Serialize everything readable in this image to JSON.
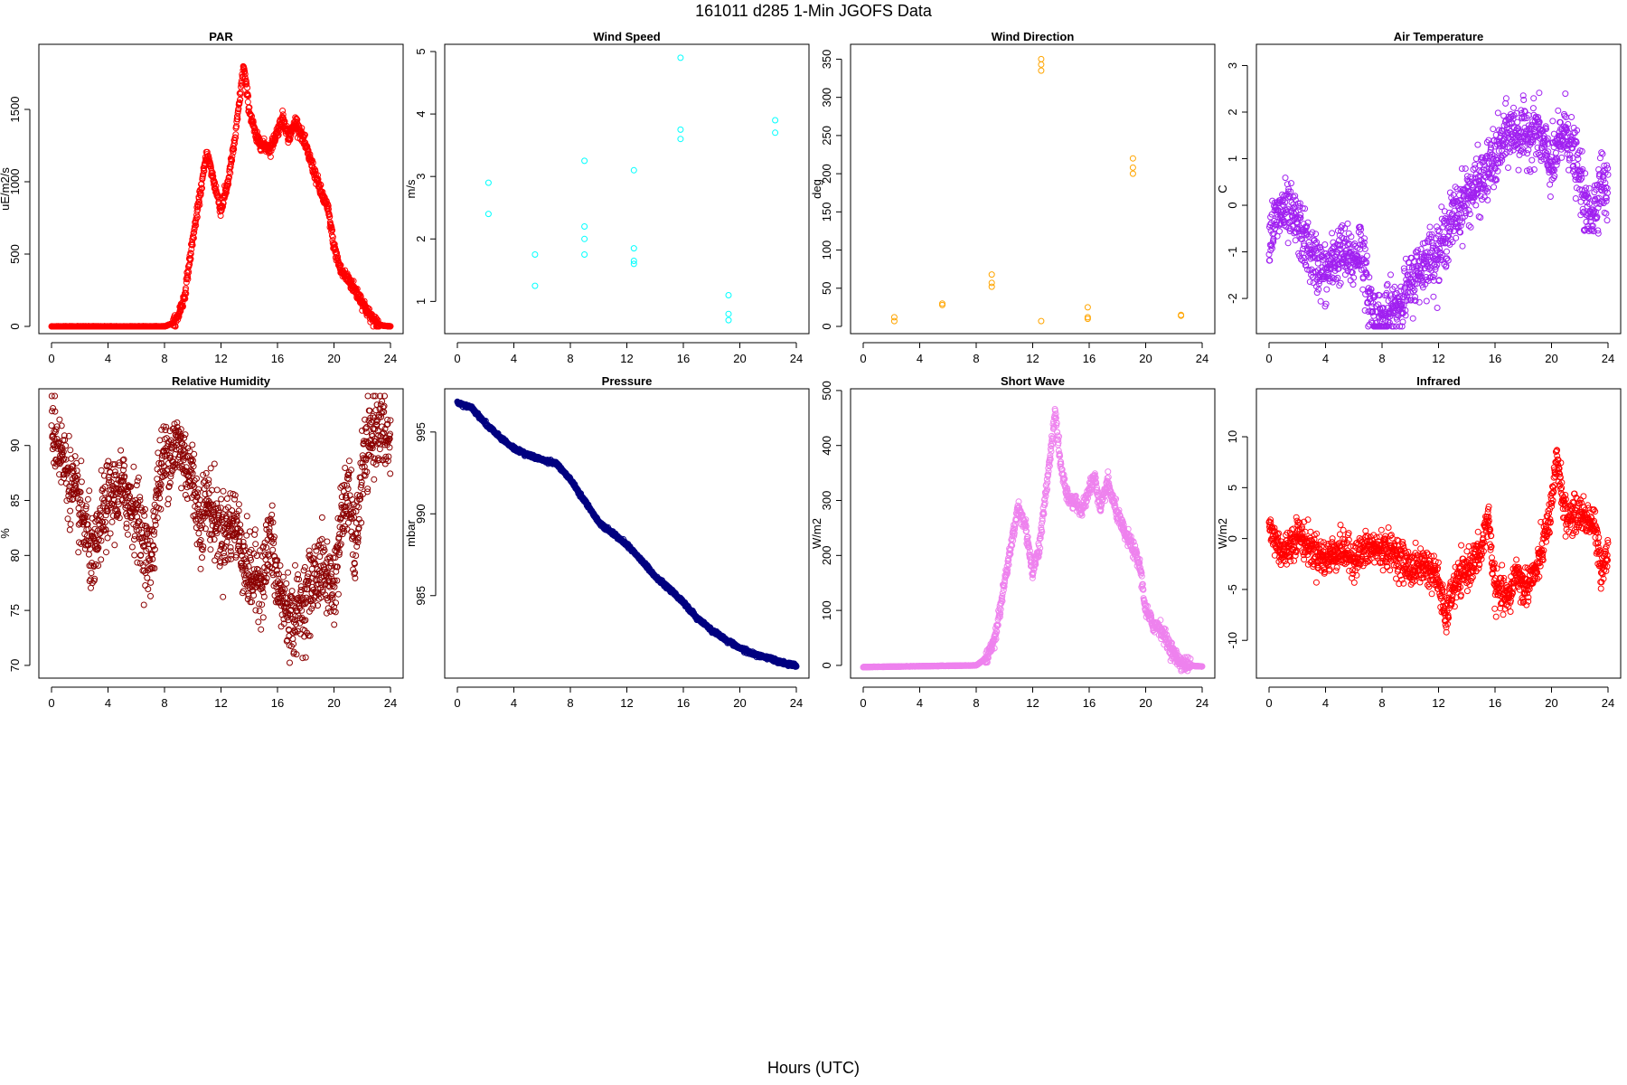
{
  "title": "161011   d285   1-Min  JGOFS Data",
  "xlabel": "Hours (UTC)",
  "chart_data": [
    {
      "id": "par",
      "type": "scatter",
      "title": "PAR",
      "ylabel": "uE/m2/s",
      "color": "#ff0000",
      "xlim": [
        0,
        24
      ],
      "ylim": [
        0,
        1900
      ],
      "xticks": [
        0,
        4,
        8,
        12,
        16,
        20,
        24
      ],
      "xtick_labels": [
        "0",
        "4",
        "8",
        "12",
        "16",
        "20",
        "24"
      ],
      "yticks": [
        0,
        500,
        1000,
        1500
      ],
      "ytick_labels": [
        "0",
        "500",
        "1000",
        "1500"
      ],
      "keypoints": [
        [
          0,
          0
        ],
        [
          8,
          0
        ],
        [
          8.8,
          30
        ],
        [
          9.4,
          200
        ],
        [
          10,
          600
        ],
        [
          10.5,
          900
        ],
        [
          11,
          1200
        ],
        [
          11.5,
          1000
        ],
        [
          12,
          800
        ],
        [
          12.5,
          1000
        ],
        [
          13,
          1300
        ],
        [
          13.6,
          1800
        ],
        [
          14,
          1500
        ],
        [
          14.5,
          1300
        ],
        [
          15,
          1250
        ],
        [
          15.5,
          1230
        ],
        [
          16,
          1350
        ],
        [
          16.4,
          1450
        ],
        [
          16.8,
          1300
        ],
        [
          17.3,
          1420
        ],
        [
          17.8,
          1300
        ],
        [
          18.5,
          1100
        ],
        [
          19,
          950
        ],
        [
          19.6,
          800
        ],
        [
          20,
          550
        ],
        [
          20.5,
          380
        ],
        [
          21,
          330
        ],
        [
          21.5,
          250
        ],
        [
          22,
          170
        ],
        [
          22.5,
          80
        ],
        [
          23,
          20
        ],
        [
          23.5,
          5
        ],
        [
          24,
          0
        ]
      ],
      "noise": 60,
      "count": 1440
    },
    {
      "id": "wind_speed",
      "type": "scatter",
      "title": "Wind Speed",
      "ylabel": "m/s",
      "color": "#00ffff",
      "xlim": [
        0,
        24
      ],
      "ylim": [
        0.6,
        5.0
      ],
      "xticks": [
        0,
        4,
        8,
        12,
        16,
        20,
        24
      ],
      "xtick_labels": [
        "0",
        "4",
        "8",
        "12",
        "16",
        "20",
        "24"
      ],
      "yticks": [
        1,
        2,
        3,
        4,
        5
      ],
      "ytick_labels": [
        "1",
        "2",
        "3",
        "4",
        "5"
      ],
      "points": [
        [
          2.2,
          2.9
        ],
        [
          2.2,
          2.4
        ],
        [
          5.5,
          1.75
        ],
        [
          5.5,
          1.25
        ],
        [
          9,
          3.25
        ],
        [
          9,
          2.2
        ],
        [
          9,
          2.0
        ],
        [
          9,
          1.75
        ],
        [
          12.5,
          3.1
        ],
        [
          12.5,
          1.85
        ],
        [
          12.5,
          1.65
        ],
        [
          12.5,
          1.6
        ],
        [
          15.8,
          4.9
        ],
        [
          15.8,
          3.75
        ],
        [
          15.8,
          3.6
        ],
        [
          19.2,
          1.1
        ],
        [
          19.2,
          0.8
        ],
        [
          19.2,
          0.7
        ],
        [
          22.5,
          3.9
        ],
        [
          22.5,
          3.7
        ]
      ]
    },
    {
      "id": "wind_dir",
      "type": "scatter",
      "title": "Wind Direction",
      "ylabel": "deg",
      "color": "#ffa500",
      "xlim": [
        0,
        24
      ],
      "ylim": [
        0,
        360
      ],
      "xticks": [
        0,
        4,
        8,
        12,
        16,
        20,
        24
      ],
      "xtick_labels": [
        "0",
        "4",
        "8",
        "12",
        "16",
        "20",
        "24"
      ],
      "yticks": [
        0,
        50,
        100,
        150,
        200,
        250,
        300,
        350
      ],
      "ytick_labels": [
        "0",
        "50",
        "100",
        "150",
        "200",
        "250",
        "300",
        "350"
      ],
      "points": [
        [
          2.2,
          12
        ],
        [
          2.2,
          7
        ],
        [
          5.6,
          30
        ],
        [
          5.6,
          28
        ],
        [
          9.1,
          68
        ],
        [
          9.1,
          57
        ],
        [
          9.1,
          52
        ],
        [
          12.6,
          350
        ],
        [
          12.6,
          343
        ],
        [
          12.6,
          335
        ],
        [
          12.6,
          7
        ],
        [
          15.9,
          25
        ],
        [
          15.9,
          12
        ],
        [
          15.9,
          10
        ],
        [
          19.1,
          220
        ],
        [
          19.1,
          208
        ],
        [
          19.1,
          200
        ],
        [
          22.5,
          15
        ],
        [
          22.5,
          14
        ]
      ]
    },
    {
      "id": "air_temp",
      "type": "scatter",
      "title": "Air Temperature",
      "ylabel": "C",
      "color": "#a020f0",
      "xlim": [
        0,
        24
      ],
      "ylim": [
        -2.6,
        3.3
      ],
      "xticks": [
        0,
        4,
        8,
        12,
        16,
        20,
        24
      ],
      "xtick_labels": [
        "0",
        "4",
        "8",
        "12",
        "16",
        "20",
        "24"
      ],
      "yticks": [
        -2,
        -1,
        0,
        1,
        2,
        3
      ],
      "ytick_labels": [
        "-2",
        "-1",
        "0",
        "1",
        "2",
        "3"
      ],
      "keypoints": [
        [
          0,
          -0.6
        ],
        [
          1,
          -0.1
        ],
        [
          2,
          -0.4
        ],
        [
          3,
          -1.1
        ],
        [
          4,
          -1.5
        ],
        [
          5,
          -1.0
        ],
        [
          6,
          -1.2
        ],
        [
          6.5,
          -0.8
        ],
        [
          7,
          -1.9
        ],
        [
          7.5,
          -2.4
        ],
        [
          8,
          -2.5
        ],
        [
          9,
          -2.2
        ],
        [
          10,
          -1.7
        ],
        [
          11,
          -1.2
        ],
        [
          12,
          -1.0
        ],
        [
          13,
          -0.3
        ],
        [
          14,
          0.2
        ],
        [
          15,
          0.5
        ],
        [
          16,
          1.0
        ],
        [
          17,
          1.6
        ],
        [
          18,
          1.5
        ],
        [
          19,
          1.6
        ],
        [
          20,
          0.8
        ],
        [
          21,
          1.7
        ],
        [
          22,
          0.6
        ],
        [
          22.5,
          -0.2
        ],
        [
          23,
          -0.1
        ],
        [
          23.5,
          0.6
        ],
        [
          24,
          0.2
        ]
      ],
      "noise": 0.9,
      "count": 1440
    },
    {
      "id": "rh",
      "type": "scatter",
      "title": "Relative Humidity",
      "ylabel": "%",
      "color": "#8b0000",
      "xlim": [
        0,
        24
      ],
      "ylim": [
        69.5,
        94.5
      ],
      "xticks": [
        0,
        4,
        8,
        12,
        16,
        20,
        24
      ],
      "xtick_labels": [
        "0",
        "4",
        "8",
        "12",
        "16",
        "20",
        "24"
      ],
      "yticks": [
        70,
        75,
        80,
        85,
        90
      ],
      "ytick_labels": [
        "70",
        "75",
        "80",
        "85",
        "90"
      ],
      "keypoints": [
        [
          0,
          92
        ],
        [
          0.5,
          90
        ],
        [
          1,
          88
        ],
        [
          1.5,
          86
        ],
        [
          2,
          84
        ],
        [
          2.5,
          82
        ],
        [
          3,
          79
        ],
        [
          3.5,
          83
        ],
        [
          4,
          85
        ],
        [
          5,
          86
        ],
        [
          6,
          84
        ],
        [
          7,
          79
        ],
        [
          7.5,
          86
        ],
        [
          8,
          89
        ],
        [
          9,
          90
        ],
        [
          10,
          87
        ],
        [
          10.5,
          83
        ],
        [
          11,
          85
        ],
        [
          12,
          82
        ],
        [
          13,
          83
        ],
        [
          14,
          78
        ],
        [
          15,
          78
        ],
        [
          15.5,
          82
        ],
        [
          16,
          77
        ],
        [
          17,
          74
        ],
        [
          18,
          76
        ],
        [
          19,
          79
        ],
        [
          20,
          77
        ],
        [
          20.5,
          83
        ],
        [
          21,
          86
        ],
        [
          21.5,
          80
        ],
        [
          22,
          88
        ],
        [
          23,
          92
        ],
        [
          24,
          90
        ]
      ],
      "noise": 5,
      "count": 1440
    },
    {
      "id": "pressure",
      "type": "scatter",
      "title": "Pressure",
      "ylabel": "mbar",
      "color": "#000080",
      "xlim": [
        0,
        24
      ],
      "ylim": [
        980.4,
        997.2
      ],
      "xticks": [
        0,
        4,
        8,
        12,
        16,
        20,
        24
      ],
      "xtick_labels": [
        "0",
        "4",
        "8",
        "12",
        "16",
        "20",
        "24"
      ],
      "yticks": [
        985,
        990,
        995
      ],
      "ytick_labels": [
        "985",
        "990",
        "995"
      ],
      "keypoints": [
        [
          0,
          996.8
        ],
        [
          1,
          996.5
        ],
        [
          2,
          995.5
        ],
        [
          3,
          994.7
        ],
        [
          4,
          994.0
        ],
        [
          5,
          993.6
        ],
        [
          6,
          993.3
        ],
        [
          7,
          993.1
        ],
        [
          8,
          992.1
        ],
        [
          9,
          990.8
        ],
        [
          10,
          989.5
        ],
        [
          11,
          988.8
        ],
        [
          12,
          988.1
        ],
        [
          13,
          987.2
        ],
        [
          14,
          986.2
        ],
        [
          15,
          985.4
        ],
        [
          16,
          984.6
        ],
        [
          17,
          983.6
        ],
        [
          18,
          982.9
        ],
        [
          19,
          982.3
        ],
        [
          20,
          981.8
        ],
        [
          21,
          981.4
        ],
        [
          22,
          981.2
        ],
        [
          23,
          980.9
        ],
        [
          24,
          980.7
        ]
      ],
      "noise": 0.1,
      "count": 1440
    },
    {
      "id": "short_wave",
      "type": "scatter",
      "title": "Short Wave",
      "ylabel": "W/m2",
      "color": "#ee82ee",
      "xlim": [
        0,
        24
      ],
      "ylim": [
        -10,
        490
      ],
      "xticks": [
        0,
        4,
        8,
        12,
        16,
        20,
        24
      ],
      "xtick_labels": [
        "0",
        "4",
        "8",
        "12",
        "16",
        "20",
        "24"
      ],
      "yticks": [
        0,
        100,
        200,
        300,
        400,
        500
      ],
      "ytick_labels": [
        "0",
        "100",
        "200",
        "300",
        "400",
        "500"
      ],
      "keypoints": [
        [
          0,
          -3
        ],
        [
          8,
          0
        ],
        [
          8.8,
          15
        ],
        [
          9.4,
          60
        ],
        [
          10,
          150
        ],
        [
          10.5,
          220
        ],
        [
          11,
          290
        ],
        [
          11.5,
          250
        ],
        [
          12,
          170
        ],
        [
          12.5,
          220
        ],
        [
          13,
          330
        ],
        [
          13.6,
          460
        ],
        [
          14,
          360
        ],
        [
          14.5,
          300
        ],
        [
          15,
          300
        ],
        [
          15.5,
          280
        ],
        [
          16,
          320
        ],
        [
          16.4,
          345
        ],
        [
          16.8,
          280
        ],
        [
          17.3,
          335
        ],
        [
          17.8,
          290
        ],
        [
          18.5,
          240
        ],
        [
          19,
          220
        ],
        [
          19.6,
          180
        ],
        [
          20,
          100
        ],
        [
          20.5,
          75
        ],
        [
          21,
          70
        ],
        [
          21.5,
          45
        ],
        [
          22,
          20
        ],
        [
          22.5,
          5
        ],
        [
          23,
          0
        ],
        [
          24,
          -2
        ]
      ],
      "noise": 20,
      "count": 1440
    },
    {
      "id": "infrared",
      "type": "scatter",
      "title": "Infrared",
      "ylabel": "W/m2",
      "color": "#ff0000",
      "xlim": [
        0,
        24
      ],
      "ylim": [
        -13,
        14
      ],
      "xticks": [
        0,
        4,
        8,
        12,
        16,
        20,
        24
      ],
      "xtick_labels": [
        "0",
        "4",
        "8",
        "12",
        "16",
        "20",
        "24"
      ],
      "yticks": [
        -10,
        -5,
        0,
        5,
        10
      ],
      "ytick_labels": [
        "-10",
        "-5",
        "0",
        "5",
        "10"
      ],
      "keypoints": [
        [
          0,
          1.0
        ],
        [
          1,
          -1.5
        ],
        [
          2,
          0.5
        ],
        [
          3,
          -1.0
        ],
        [
          4,
          -2.0
        ],
        [
          5,
          -1.0
        ],
        [
          6,
          -2.0
        ],
        [
          7,
          -1.0
        ],
        [
          8,
          -1.0
        ],
        [
          9,
          -1.5
        ],
        [
          10,
          -3.0
        ],
        [
          11,
          -2.5
        ],
        [
          12,
          -4.0
        ],
        [
          12.5,
          -8.0
        ],
        [
          13,
          -5.0
        ],
        [
          14,
          -3.0
        ],
        [
          15,
          -1.5
        ],
        [
          15.5,
          2.5
        ],
        [
          16,
          -5.0
        ],
        [
          17,
          -6.0
        ],
        [
          17.5,
          -3.0
        ],
        [
          18,
          -5.0
        ],
        [
          19,
          -3.0
        ],
        [
          20,
          3.0
        ],
        [
          20.4,
          8.0
        ],
        [
          21,
          2.0
        ],
        [
          22,
          2.5
        ],
        [
          23,
          1.5
        ],
        [
          23.5,
          -3.0
        ],
        [
          24,
          -1.0
        ]
      ],
      "noise": 2.5,
      "count": 1440
    }
  ]
}
